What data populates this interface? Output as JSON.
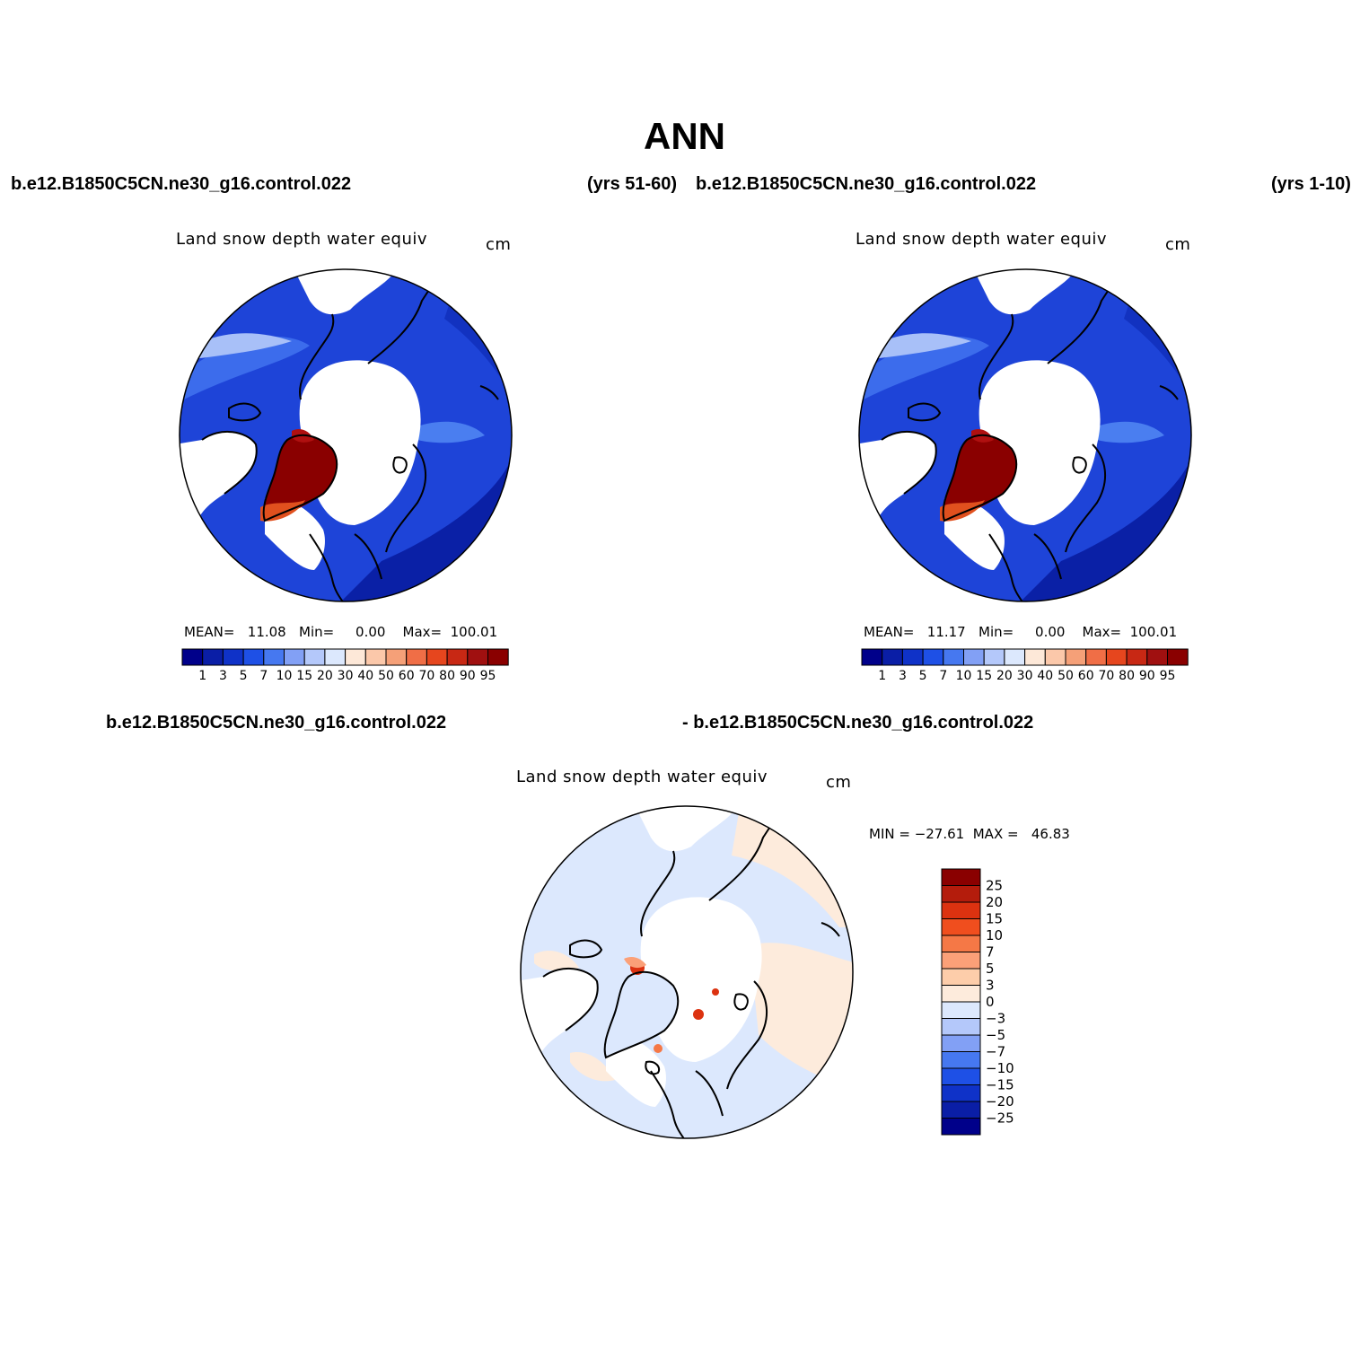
{
  "title": "ANN",
  "top_left": {
    "case": "b.e12.B1850C5CN.ne30_g16.control.022",
    "years": "(yrs 51-60)"
  },
  "top_right": {
    "case": "b.e12.B1850C5CN.ne30_g16.control.022",
    "years": "(yrs 1-10)"
  },
  "bottom": {
    "case_left": "b.e12.B1850C5CN.ne30_g16.control.022",
    "case_right": "- b.e12.B1850C5CN.ne30_g16.control.022"
  },
  "panels": [
    {
      "label": "Land snow depth water equiv",
      "units": "cm",
      "stats": "MEAN=   11.08   Min=     0.00    Max=  100.01",
      "colorbar_labels": [
        "1",
        "3",
        "5",
        "7",
        "10",
        "15",
        "20",
        "30",
        "40",
        "50",
        "60",
        "70",
        "80",
        "90",
        "95"
      ]
    },
    {
      "label": "Land snow depth water equiv",
      "units": "cm",
      "stats": "MEAN=   11.17   Min=     0.00    Max=  100.01",
      "colorbar_labels": [
        "1",
        "3",
        "5",
        "7",
        "10",
        "15",
        "20",
        "30",
        "40",
        "50",
        "60",
        "70",
        "80",
        "90",
        "95"
      ]
    },
    {
      "label": "Land snow depth water equiv",
      "units": "cm",
      "stats": "MIN = −27.61  MAX =   46.83",
      "colorbar_labels": [
        "25",
        "20",
        "15",
        "10",
        "7",
        "5",
        "3",
        "0",
        "−3",
        "−5",
        "−7",
        "−10",
        "−15",
        "−20",
        "−25"
      ]
    }
  ],
  "colors": {
    "abs_scale": [
      "#00008a",
      "#0a1ea6",
      "#0f32c8",
      "#1e50e6",
      "#4678f0",
      "#82a0f5",
      "#b4c8fa",
      "#dce8fd",
      "#fde8d8",
      "#fbc8aa",
      "#f5a078",
      "#f06e46",
      "#e6461e",
      "#c82814",
      "#a01010",
      "#8a0000"
    ],
    "diff_scale": [
      "#8a0000",
      "#b41c0c",
      "#dc3210",
      "#f04e1e",
      "#f57846",
      "#fba078",
      "#fdcdaa",
      "#fdebdc",
      "#dce8fd",
      "#b4c8fa",
      "#82a0f5",
      "#4678f0",
      "#1e50e6",
      "#0f32c8",
      "#0a1ea6",
      "#00008a"
    ]
  }
}
